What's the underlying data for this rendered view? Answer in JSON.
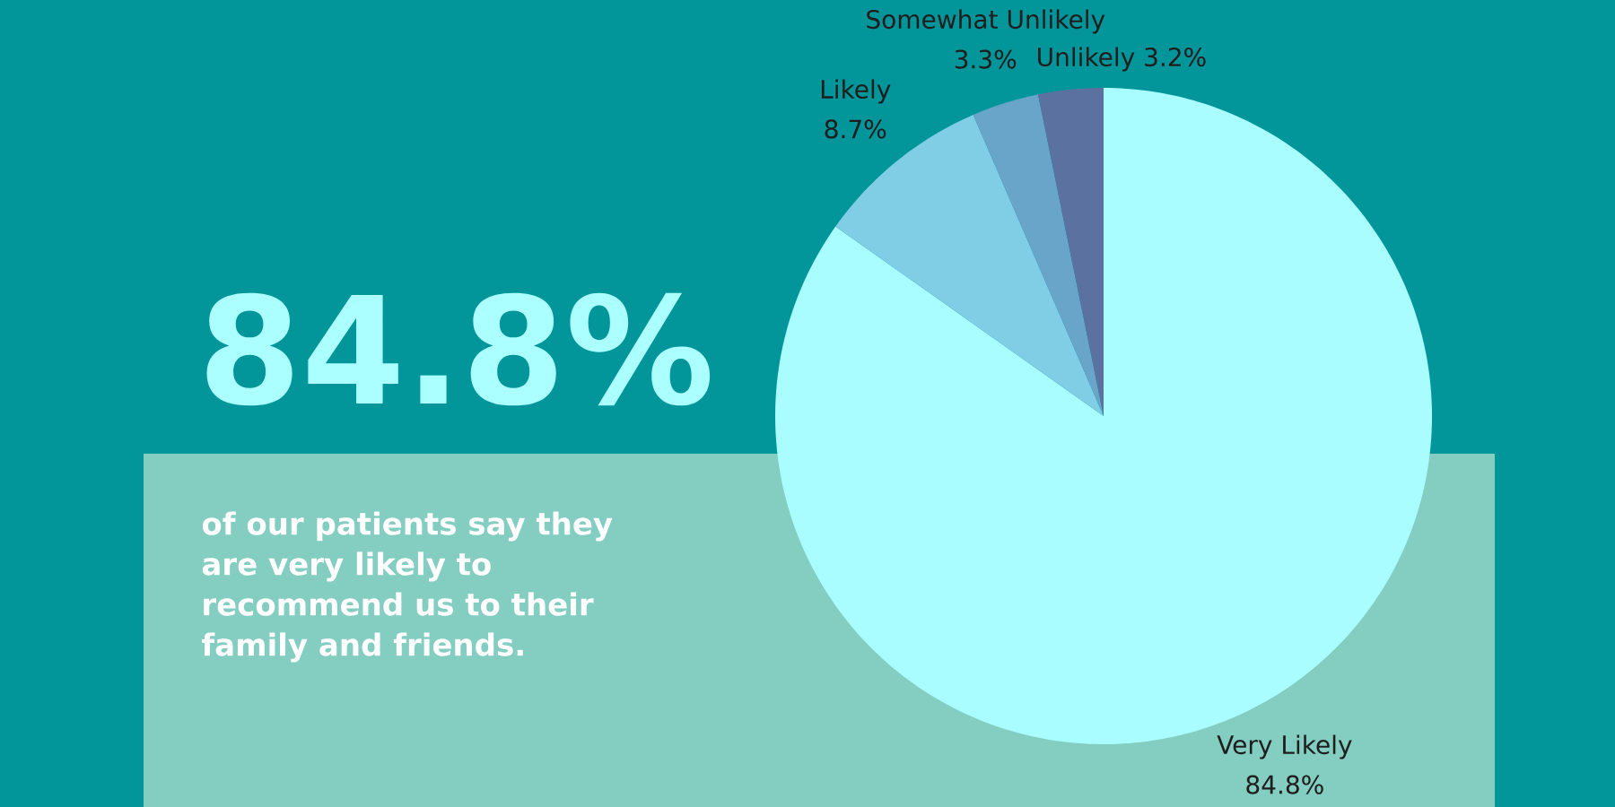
{
  "chart_data": {
    "type": "pie",
    "title": "84.8%",
    "subtitle": "of our patients say they are very likely to recommend us to their family and friends.",
    "categories": [
      "Very Likely",
      "Likely",
      "Somewhat Unlikely",
      "Unlikely"
    ],
    "values": [
      84.8,
      8.7,
      3.3,
      3.2
    ],
    "colors": [
      "#aafdff",
      "#80cee6",
      "#68a5c8",
      "#5b72a1"
    ],
    "value_labels": [
      "84.8%",
      "8.7%",
      "3.3%",
      "3.2%"
    ]
  }
}
